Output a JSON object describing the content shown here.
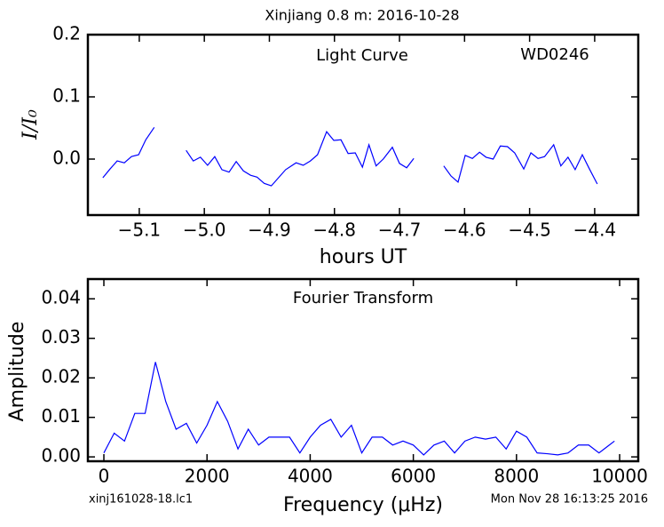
{
  "title": "Xinjiang 0.8 m:  2016-10-28",
  "footer_left": "xinj161028-18.lc1",
  "footer_right": "Mon Nov 28 16:13:25 2016",
  "chart_data": [
    {
      "type": "line",
      "annotations": [
        "Light Curve",
        "WD0246"
      ],
      "x_label": "hours UT",
      "y_label": "I/I₀",
      "x": [
        -5.156,
        -5.145,
        -5.134,
        -5.123,
        -5.112,
        -5.101,
        -5.09,
        -5.077,
        null,
        -5.028,
        -5.017,
        -5.006,
        -4.995,
        -4.984,
        -4.973,
        -4.962,
        -4.951,
        -4.94,
        -4.929,
        -4.919,
        -4.908,
        -4.897,
        -4.886,
        -4.875,
        -4.859,
        -4.848,
        -4.837,
        -4.826,
        -4.812,
        -4.801,
        -4.79,
        -4.779,
        -4.768,
        -4.757,
        -4.747,
        -4.736,
        -4.725,
        -4.711,
        -4.7,
        -4.689,
        -4.678,
        null,
        -4.632,
        -4.621,
        -4.61,
        -4.599,
        -4.588,
        -4.577,
        -4.567,
        -4.556,
        -4.545,
        -4.534,
        -4.523,
        -4.509,
        -4.498,
        -4.487,
        -4.477,
        -4.463,
        -4.452,
        -4.441,
        -4.43,
        -4.419,
        -4.408,
        -4.396
      ],
      "series": [
        {
          "color": "#0000ff",
          "values": [
            -0.03,
            -0.016,
            -0.003,
            -0.006,
            0.004,
            0.007,
            0.031,
            0.051,
            null,
            0.014,
            -0.003,
            0.003,
            -0.01,
            0.004,
            -0.017,
            -0.021,
            -0.004,
            -0.019,
            -0.026,
            -0.029,
            -0.039,
            -0.043,
            -0.03,
            -0.017,
            -0.006,
            -0.01,
            -0.003,
            0.007,
            0.044,
            0.03,
            0.031,
            0.009,
            0.01,
            -0.013,
            0.023,
            -0.011,
            0.0,
            0.019,
            -0.007,
            -0.014,
            0.001,
            null,
            -0.011,
            -0.027,
            -0.037,
            0.006,
            0.001,
            0.011,
            0.003,
            0.0,
            0.021,
            0.02,
            0.01,
            -0.016,
            0.01,
            0.001,
            0.004,
            0.023,
            -0.011,
            0.003,
            -0.017,
            0.007,
            -0.016,
            -0.04
          ]
        }
      ],
      "xlim": [
        -5.179,
        -4.333
      ],
      "ylim": [
        -0.09,
        0.2
      ],
      "xticks": [
        {
          "value": -5.1,
          "label": "−5.1"
        },
        {
          "value": -5.0,
          "label": "−5.0"
        },
        {
          "value": -4.9,
          "label": "−4.9"
        },
        {
          "value": -4.8,
          "label": "−4.8"
        },
        {
          "value": -4.7,
          "label": "−4.7"
        },
        {
          "value": -4.6,
          "label": "−4.6"
        },
        {
          "value": -4.5,
          "label": "−4.5"
        },
        {
          "value": -4.4,
          "label": "−4.4"
        }
      ],
      "yticks": [
        {
          "value": 0,
          "label": "0.0"
        },
        0.1,
        0.2
      ]
    },
    {
      "type": "line",
      "annotations": [
        "Fourier Transform"
      ],
      "x_label": "Frequency (μHz)",
      "y_label": "Amplitude",
      "x": [
        0,
        200,
        400,
        600,
        800,
        1000,
        1200,
        1400,
        1600,
        1800,
        2000,
        2200,
        2400,
        2600,
        2800,
        3000,
        3200,
        3400,
        3600,
        3800,
        4000,
        4200,
        4400,
        4600,
        4800,
        5000,
        5200,
        5400,
        5600,
        5800,
        6000,
        6200,
        6400,
        6600,
        6800,
        7000,
        7200,
        7400,
        7600,
        7800,
        8000,
        8200,
        8400,
        8600,
        8800,
        9000,
        9200,
        9400,
        9600,
        9800,
        9900
      ],
      "series": [
        {
          "color": "#0000ff",
          "values": [
            0.001,
            0.006,
            0.004,
            0.011,
            0.011,
            0.024,
            0.014,
            0.007,
            0.0085,
            0.0035,
            0.008,
            0.014,
            0.009,
            0.002,
            0.007,
            0.003,
            0.005,
            0.005,
            0.005,
            0.001,
            0.005,
            0.008,
            0.0095,
            0.005,
            0.008,
            0.001,
            0.005,
            0.005,
            0.003,
            0.004,
            0.003,
            0.0005,
            0.003,
            0.004,
            0.001,
            0.004,
            0.005,
            0.0045,
            0.005,
            0.002,
            0.0065,
            0.005,
            0.001,
            0.0008,
            0.0005,
            0.001,
            0.003,
            0.003,
            0.001,
            0.003,
            0.004
          ]
        }
      ],
      "xlim": [
        -310,
        10361
      ],
      "ylim": [
        -0.0011,
        0.045
      ],
      "xticks": [
        0,
        2000,
        4000,
        6000,
        8000,
        10000
      ],
      "yticks": [
        {
          "value": 0,
          "label": "0.00"
        },
        {
          "value": 0.01,
          "label": "0.01"
        },
        {
          "value": 0.02,
          "label": "0.02"
        },
        {
          "value": 0.03,
          "label": "0.03"
        },
        {
          "value": 0.04,
          "label": "0.04"
        }
      ]
    }
  ]
}
